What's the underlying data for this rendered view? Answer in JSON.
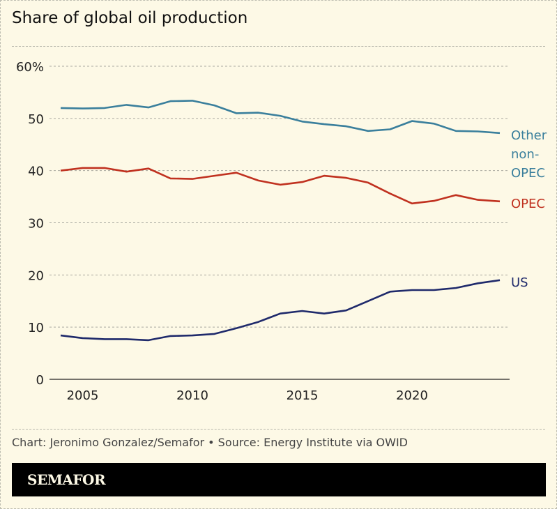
{
  "title": "Share of global oil production",
  "source": "Chart: Jeronimo Gonzalez/Semafor • Source: Energy Institute via OWID",
  "logo": "SEMAFOR",
  "chart_data": {
    "type": "line",
    "title": "Share of global oil production",
    "ylim": [
      0,
      60
    ],
    "yticks": [
      0,
      10,
      20,
      30,
      40,
      50,
      60
    ],
    "ytick_labels": [
      "0",
      "10",
      "20",
      "30",
      "40",
      "50",
      "60%"
    ],
    "xticks": [
      2005,
      2010,
      2015,
      2020
    ],
    "xtick_labels": [
      "2005",
      "2010",
      "2015",
      "2020"
    ],
    "grid": "horizontal",
    "x": [
      2004,
      2005,
      2006,
      2007,
      2008,
      2009,
      2010,
      2011,
      2012,
      2013,
      2014,
      2015,
      2016,
      2017,
      2018,
      2019,
      2020,
      2021,
      2022,
      2023,
      2024
    ],
    "series": [
      {
        "name": "Other non-OPEC",
        "label_lines": [
          "Other",
          "non-",
          "OPEC"
        ],
        "color": "#3a7f9c",
        "values": [
          52.0,
          51.9,
          52.0,
          52.6,
          52.1,
          53.3,
          53.4,
          52.5,
          51.0,
          51.1,
          50.5,
          49.4,
          48.9,
          48.5,
          47.6,
          47.9,
          49.5,
          49.0,
          47.6,
          47.5,
          47.2
        ]
      },
      {
        "name": "OPEC",
        "label_lines": [
          "OPEC"
        ],
        "color": "#c0311f",
        "values": [
          40.0,
          40.5,
          40.5,
          39.8,
          40.4,
          38.5,
          38.4,
          39.0,
          39.6,
          38.1,
          37.3,
          37.8,
          39.0,
          38.6,
          37.7,
          35.6,
          33.7,
          34.2,
          35.3,
          34.4,
          34.1
        ]
      },
      {
        "name": "US",
        "label_lines": [
          "US"
        ],
        "color": "#1f2a6b",
        "values": [
          8.4,
          7.9,
          7.7,
          7.7,
          7.5,
          8.3,
          8.4,
          8.7,
          9.8,
          11.0,
          12.6,
          13.1,
          12.6,
          13.2,
          15.0,
          16.8,
          17.1,
          17.1,
          17.5,
          18.4,
          19.0
        ]
      }
    ]
  }
}
